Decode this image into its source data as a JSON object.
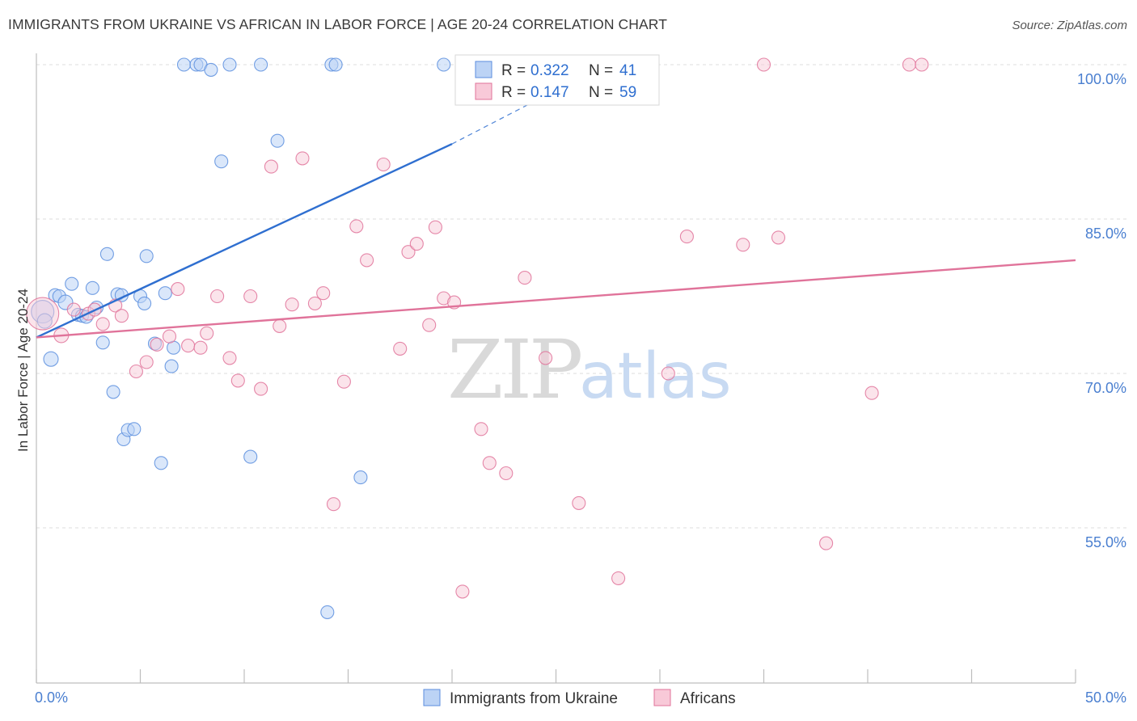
{
  "title": "IMMIGRANTS FROM UKRAINE VS AFRICAN IN LABOR FORCE | AGE 20-24 CORRELATION CHART",
  "source": "Source: ZipAtlas.com",
  "watermark": {
    "zip": "ZIP",
    "atlas": "atlas"
  },
  "chart_data": {
    "type": "scatter",
    "ylabel": "In Labor Force | Age 20-24",
    "x_min_label": "0.0%",
    "x_max_label": "50.0%",
    "xlim": [
      0,
      50
    ],
    "ylim": [
      40,
      100
    ],
    "y_ticks": [
      {
        "value": 100,
        "label": "100.0%"
      },
      {
        "value": 85,
        "label": "85.0%"
      },
      {
        "value": 70,
        "label": "70.0%"
      },
      {
        "value": 55,
        "label": "55.0%"
      }
    ],
    "legend": {
      "r_label": "R =",
      "n_label": "N =",
      "entries": [
        {
          "name": "Immigrants from Ukraine",
          "r": "0.322",
          "n": "41",
          "color": "#5b8ede",
          "fill": "#bcd3f5"
        },
        {
          "name": "Africans",
          "r": "0.147",
          "n": "59",
          "color": "#e0739a",
          "fill": "#f8c9d8"
        }
      ]
    },
    "series": [
      {
        "name": "Immigrants from Ukraine",
        "color": "#5b8ede",
        "trend": {
          "x0": 0,
          "y0": 73.5,
          "x1": 20,
          "y1": 92.3,
          "dash_x1": 27,
          "dash_y1": 99.6
        },
        "points": [
          [
            0.3,
            76.0,
            14
          ],
          [
            0.4,
            75.1,
            9
          ],
          [
            0.7,
            71.4,
            9
          ],
          [
            0.9,
            77.6,
            8
          ],
          [
            1.1,
            77.5,
            8
          ],
          [
            1.4,
            76.9,
            9
          ],
          [
            1.7,
            78.7,
            8
          ],
          [
            2.0,
            75.7,
            8
          ],
          [
            2.2,
            75.6,
            8
          ],
          [
            2.4,
            75.5,
            8
          ],
          [
            2.7,
            78.3,
            8
          ],
          [
            2.9,
            76.4,
            8
          ],
          [
            3.2,
            73.0,
            8
          ],
          [
            3.4,
            81.6,
            8
          ],
          [
            3.7,
            68.2,
            8
          ],
          [
            3.9,
            77.7,
            8
          ],
          [
            4.1,
            77.6,
            8
          ],
          [
            4.2,
            63.6,
            8
          ],
          [
            4.4,
            64.5,
            8
          ],
          [
            4.7,
            64.6,
            8
          ],
          [
            5.0,
            77.5,
            8
          ],
          [
            5.2,
            76.8,
            8
          ],
          [
            5.3,
            81.4,
            8
          ],
          [
            5.7,
            72.9,
            8
          ],
          [
            6.0,
            61.3,
            8
          ],
          [
            6.2,
            77.8,
            8
          ],
          [
            6.5,
            70.7,
            8
          ],
          [
            6.6,
            72.5,
            8
          ],
          [
            7.1,
            100.0,
            8
          ],
          [
            7.7,
            100.0,
            8
          ],
          [
            7.9,
            100.0,
            8
          ],
          [
            8.4,
            99.5,
            8
          ],
          [
            8.9,
            90.6,
            8
          ],
          [
            9.3,
            100.0,
            8
          ],
          [
            10.3,
            61.9,
            8
          ],
          [
            10.8,
            100.0,
            8
          ],
          [
            11.6,
            92.6,
            8
          ],
          [
            14.0,
            46.8,
            8
          ],
          [
            14.2,
            100.0,
            8
          ],
          [
            14.4,
            100.0,
            8
          ],
          [
            15.6,
            59.9,
            8
          ],
          [
            19.6,
            100.0,
            8
          ]
        ]
      },
      {
        "name": "Africans",
        "color": "#e0739a",
        "trend": {
          "x0": 0,
          "y0": 73.5,
          "x1": 50,
          "y1": 81.0
        },
        "points": [
          [
            0.3,
            75.8,
            20
          ],
          [
            1.2,
            73.7,
            9
          ],
          [
            1.8,
            76.2,
            8
          ],
          [
            2.5,
            75.8,
            8
          ],
          [
            2.8,
            76.2,
            8
          ],
          [
            3.2,
            74.8,
            8
          ],
          [
            3.8,
            76.6,
            8
          ],
          [
            4.1,
            75.6,
            8
          ],
          [
            4.8,
            70.2,
            8
          ],
          [
            5.3,
            71.1,
            8
          ],
          [
            5.8,
            72.8,
            8
          ],
          [
            6.4,
            73.6,
            8
          ],
          [
            6.8,
            78.2,
            8
          ],
          [
            7.3,
            72.7,
            8
          ],
          [
            7.9,
            72.5,
            8
          ],
          [
            8.2,
            73.9,
            8
          ],
          [
            8.7,
            77.5,
            8
          ],
          [
            9.3,
            71.5,
            8
          ],
          [
            9.7,
            69.3,
            8
          ],
          [
            10.3,
            77.5,
            8
          ],
          [
            10.8,
            68.5,
            8
          ],
          [
            11.3,
            90.1,
            8
          ],
          [
            11.7,
            74.6,
            8
          ],
          [
            12.3,
            76.7,
            8
          ],
          [
            12.8,
            90.9,
            8
          ],
          [
            13.4,
            76.8,
            8
          ],
          [
            13.8,
            77.8,
            8
          ],
          [
            14.3,
            57.3,
            8
          ],
          [
            14.8,
            69.2,
            8
          ],
          [
            15.4,
            84.3,
            8
          ],
          [
            15.9,
            81.0,
            8
          ],
          [
            16.7,
            90.3,
            8
          ],
          [
            17.5,
            72.4,
            8
          ],
          [
            17.9,
            81.8,
            8
          ],
          [
            18.3,
            82.6,
            8
          ],
          [
            18.9,
            74.7,
            8
          ],
          [
            19.2,
            84.2,
            8
          ],
          [
            19.6,
            77.3,
            8
          ],
          [
            20.1,
            76.9,
            8
          ],
          [
            20.5,
            48.8,
            8
          ],
          [
            21.4,
            64.6,
            8
          ],
          [
            21.8,
            61.3,
            8
          ],
          [
            22.6,
            60.3,
            8
          ],
          [
            23.5,
            79.3,
            8
          ],
          [
            24.5,
            71.5,
            8
          ],
          [
            26.1,
            57.4,
            8
          ],
          [
            28.0,
            50.1,
            8
          ],
          [
            30.4,
            70.0,
            8
          ],
          [
            31.3,
            83.3,
            8
          ],
          [
            34.0,
            82.5,
            8
          ],
          [
            35.0,
            100.0,
            8
          ],
          [
            35.7,
            83.2,
            8
          ],
          [
            38.0,
            53.5,
            8
          ],
          [
            40.2,
            68.1,
            8
          ],
          [
            42.0,
            100.0,
            8
          ],
          [
            42.6,
            100.0,
            8
          ]
        ]
      }
    ]
  }
}
